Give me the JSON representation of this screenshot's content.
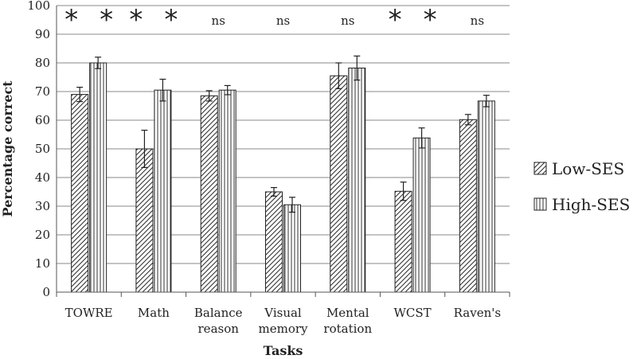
{
  "chart_data": {
    "type": "bar",
    "categories": [
      [
        "TOWRE"
      ],
      [
        "Math"
      ],
      [
        "Balance",
        "reason"
      ],
      [
        "Visual",
        "memory"
      ],
      [
        "Mental",
        "rotation"
      ],
      [
        "WCST"
      ],
      [
        "Raven's"
      ]
    ],
    "series": [
      {
        "name": "Low-SES",
        "pattern": "diagonal",
        "values": [
          69,
          50,
          68.5,
          35,
          75.5,
          35.2,
          60.2
        ],
        "errors": [
          2.5,
          6.5,
          1.8,
          1.5,
          4.5,
          3.2,
          1.8
        ]
      },
      {
        "name": "High-SES",
        "pattern": "vertical",
        "values": [
          80,
          70.5,
          70.5,
          30.5,
          78.2,
          53.8,
          66.7
        ],
        "errors": [
          2.0,
          3.8,
          1.6,
          2.6,
          4.2,
          3.5,
          2.0
        ]
      }
    ],
    "significance": [
      "*",
      "*",
      "ns",
      "ns",
      "ns",
      "*",
      "ns"
    ],
    "ylim": [
      0,
      100
    ],
    "yticks": [
      0,
      10,
      20,
      30,
      40,
      50,
      60,
      70,
      80,
      90,
      100
    ],
    "xlabel": "Tasks",
    "ylabel": "Percentage correct",
    "grid": true,
    "legend_position": "right"
  }
}
